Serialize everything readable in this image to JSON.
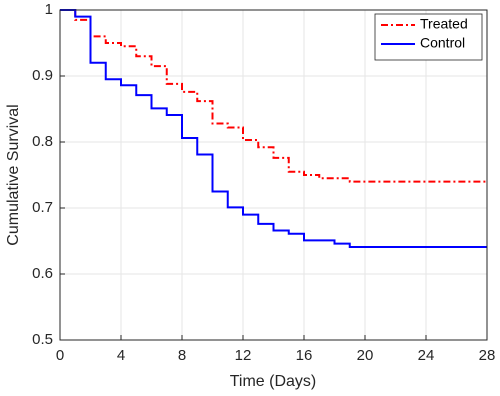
{
  "chart_data": {
    "type": "step",
    "xlabel": "Time (Days)",
    "ylabel": "Cumulative Survival",
    "xlim": [
      0,
      28
    ],
    "xticks": [
      0,
      4,
      8,
      12,
      16,
      20,
      24,
      28
    ],
    "ylim": [
      0.5,
      1
    ],
    "yticks": [
      0.5,
      0.6,
      0.7,
      0.8,
      0.9,
      1
    ],
    "grid": true,
    "legend": "northeast",
    "series": [
      {
        "name": "Treated",
        "color": "#ff0000",
        "line_style": "dash-dot",
        "x": [
          0,
          1,
          2,
          3,
          4,
          5,
          6,
          7,
          8,
          9,
          10,
          11,
          12,
          13,
          14,
          15,
          16,
          17,
          19,
          28
        ],
        "values": [
          1,
          0.985,
          0.96,
          0.95,
          0.945,
          0.93,
          0.915,
          0.888,
          0.876,
          0.862,
          0.828,
          0.822,
          0.803,
          0.792,
          0.776,
          0.755,
          0.75,
          0.745,
          0.74,
          0.74
        ]
      },
      {
        "name": "Control",
        "color": "#0000ff",
        "line_style": "solid",
        "x": [
          0,
          1,
          2,
          3,
          4,
          5,
          6,
          7,
          8,
          9,
          10,
          11,
          12,
          13,
          14,
          15,
          16,
          18,
          19,
          28
        ],
        "values": [
          1,
          0.99,
          0.92,
          0.895,
          0.886,
          0.871,
          0.851,
          0.841,
          0.806,
          0.781,
          0.725,
          0.701,
          0.69,
          0.676,
          0.666,
          0.661,
          0.651,
          0.646,
          0.641,
          0.641
        ]
      }
    ]
  }
}
